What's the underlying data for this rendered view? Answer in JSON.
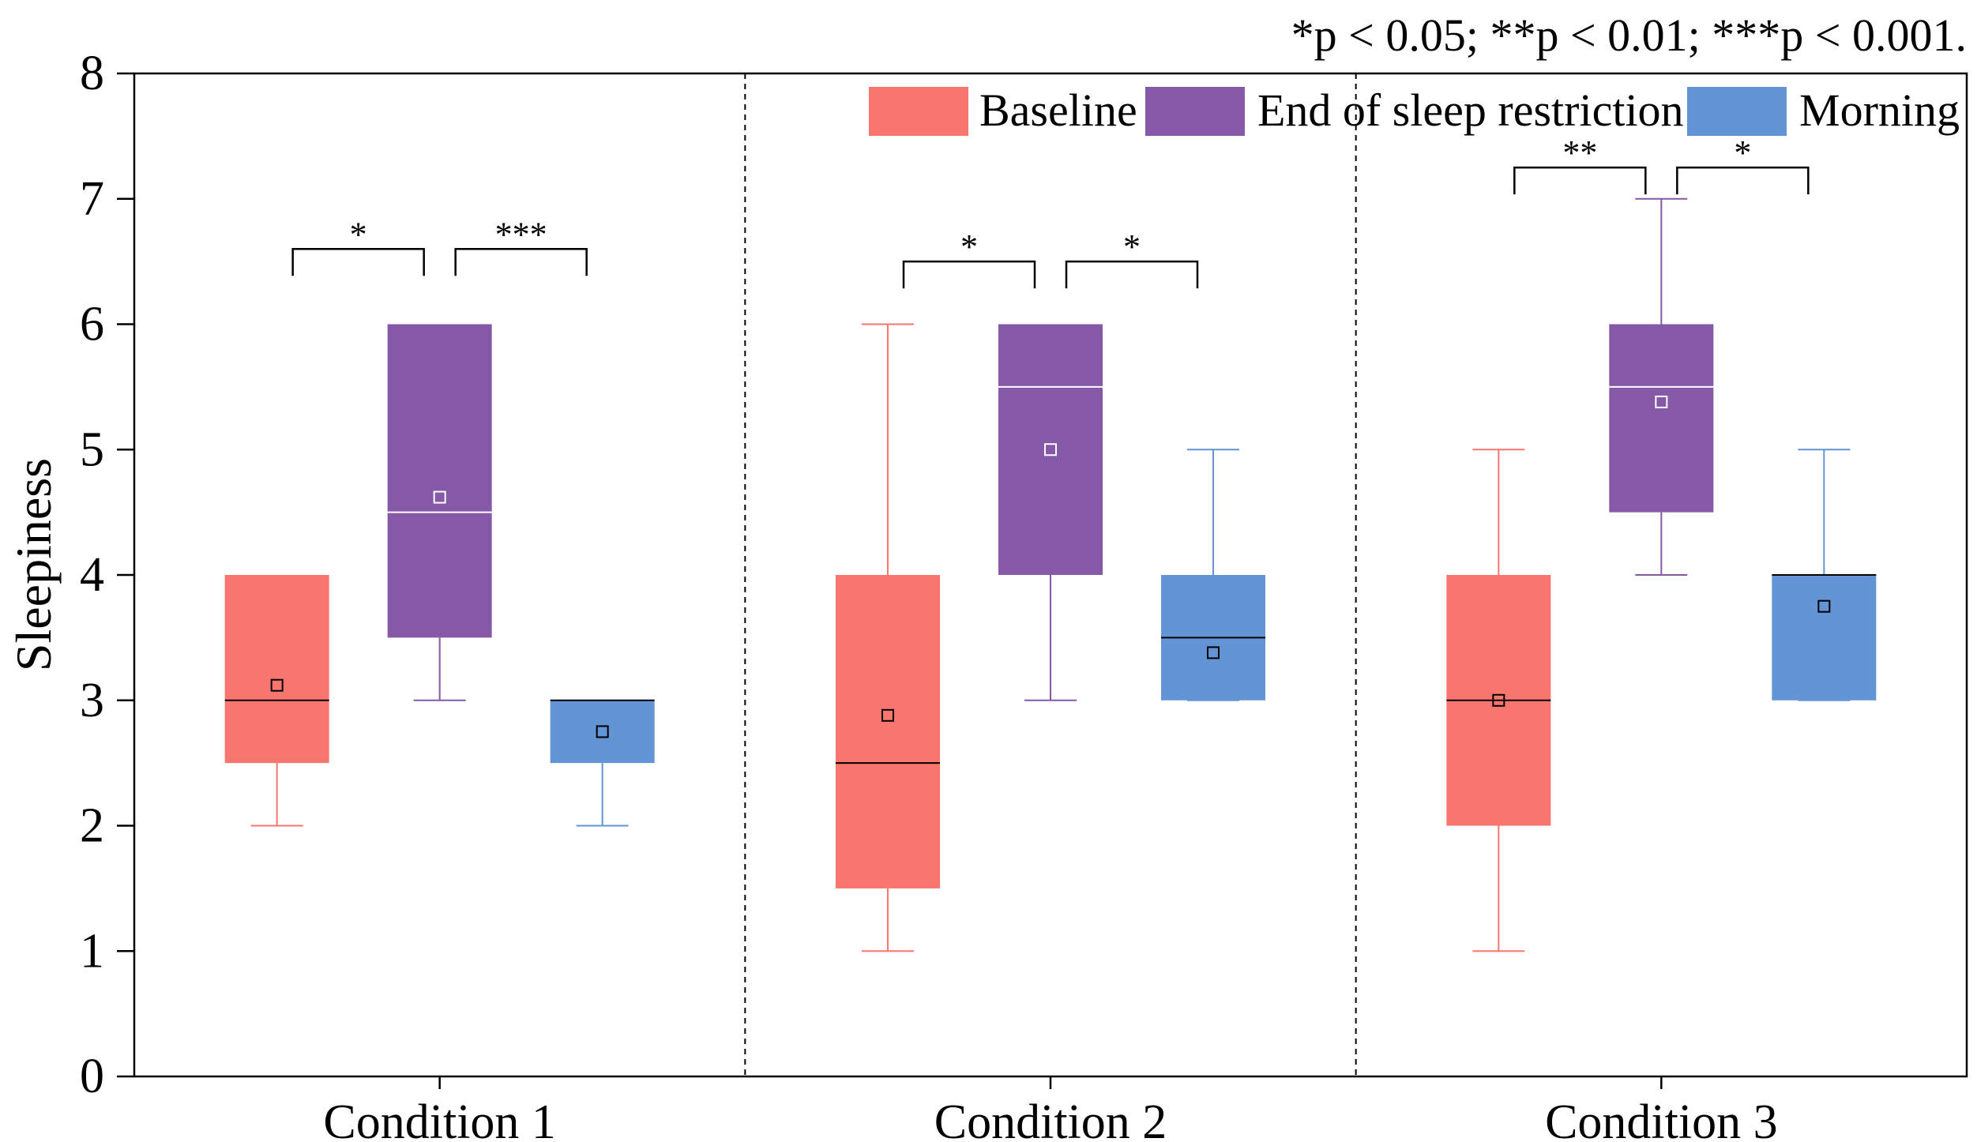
{
  "chart_data": {
    "type": "box",
    "ylabel": "Sleepiness",
    "xlabel": "",
    "ylim": [
      0,
      8
    ],
    "yticks": [
      "0",
      "1",
      "2",
      "3",
      "4",
      "5",
      "6",
      "7",
      "8"
    ],
    "significance_note": "*p < 0.05; **p < 0.01; ***p < 0.001.",
    "legend_position": "top-right",
    "series": [
      {
        "name": "Baseline",
        "color": "#F8766D",
        "median_color": "#000000",
        "mean_marker_color": "#000000"
      },
      {
        "name": "End of sleep restriction",
        "color": "#8558A8",
        "median_color": "#FFFFFF",
        "mean_marker_color": "#FFFFFF"
      },
      {
        "name": "Morning",
        "color": "#6294D6",
        "median_color": "#000000",
        "mean_marker_color": "#000000"
      }
    ],
    "groups": [
      {
        "label": "Condition 1",
        "boxes": [
          {
            "series": "Baseline",
            "whisker_low": 2,
            "q1": 2.5,
            "median": 3,
            "q3": 4,
            "whisker_high": 4,
            "mean": 3.12
          },
          {
            "series": "End of sleep restriction",
            "whisker_low": 3,
            "q1": 3.5,
            "median": 4.5,
            "q3": 6,
            "whisker_high": 6,
            "mean": 4.62
          },
          {
            "series": "Morning",
            "whisker_low": 2,
            "q1": 2.5,
            "median": 3,
            "q3": 3,
            "whisker_high": 3,
            "mean": 2.75
          }
        ],
        "significance": [
          {
            "from": 0,
            "to": 1,
            "label": "*",
            "y": 6.6
          },
          {
            "from": 1,
            "to": 2,
            "label": "***",
            "y": 6.6
          }
        ]
      },
      {
        "label": "Condition 2",
        "boxes": [
          {
            "series": "Baseline",
            "whisker_low": 1,
            "q1": 1.5,
            "median": 2.5,
            "q3": 4,
            "whisker_high": 6,
            "mean": 2.88
          },
          {
            "series": "End of sleep restriction",
            "whisker_low": 3,
            "q1": 4,
            "median": 5.5,
            "q3": 6,
            "whisker_high": 6,
            "mean": 5
          },
          {
            "series": "Morning",
            "whisker_low": 3,
            "q1": 3,
            "median": 3.5,
            "q3": 4,
            "whisker_high": 5,
            "mean": 3.38
          }
        ],
        "significance": [
          {
            "from": 0,
            "to": 1,
            "label": "*",
            "y": 6.5
          },
          {
            "from": 1,
            "to": 2,
            "label": "*",
            "y": 6.5
          }
        ]
      },
      {
        "label": "Condition 3",
        "boxes": [
          {
            "series": "Baseline",
            "whisker_low": 1,
            "q1": 2,
            "median": 3,
            "q3": 4,
            "whisker_high": 5,
            "mean": 3
          },
          {
            "series": "End of sleep restriction",
            "whisker_low": 4,
            "q1": 4.5,
            "median": 5.5,
            "q3": 6,
            "whisker_high": 7,
            "mean": 5.38
          },
          {
            "series": "Morning",
            "whisker_low": 3,
            "q1": 3,
            "median": 4,
            "q3": 4,
            "whisker_high": 5,
            "mean": 3.75
          }
        ],
        "significance": [
          {
            "from": 0,
            "to": 1,
            "label": "**",
            "y": 7.25
          },
          {
            "from": 1,
            "to": 2,
            "label": "*",
            "y": 7.25
          }
        ]
      }
    ]
  }
}
